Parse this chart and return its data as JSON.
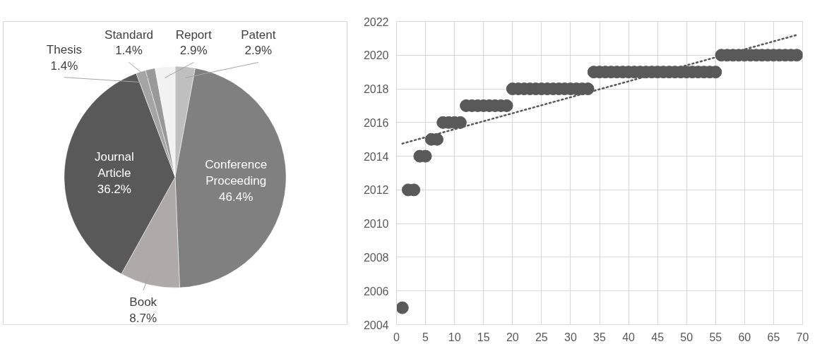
{
  "chart_data": [
    {
      "type": "pie",
      "categories": [
        "Patent",
        "Conference Proceeding",
        "Book",
        "Journal Article",
        "Thesis",
        "Standard",
        "Report"
      ],
      "values": [
        2.9,
        46.4,
        8.7,
        36.2,
        1.4,
        1.4,
        2.9
      ],
      "colors": [
        "#bfbfbf",
        "#808080",
        "#aeaaaa",
        "#595959",
        "#a5a5a5",
        "#999999",
        "#f2f2f2"
      ],
      "value_labels": [
        "2.9%",
        "46.4%",
        "8.7%",
        "36.2%",
        "1.4%",
        "1.4%",
        "2.9%"
      ]
    },
    {
      "type": "scatter",
      "xlim": [
        0,
        70
      ],
      "ylim": [
        2004,
        2022
      ],
      "xticks": [
        0,
        5,
        10,
        15,
        20,
        25,
        30,
        35,
        40,
        45,
        50,
        55,
        60,
        65,
        70
      ],
      "yticks": [
        2004,
        2006,
        2008,
        2010,
        2012,
        2014,
        2016,
        2018,
        2020,
        2022
      ],
      "grid": true,
      "series": [
        {
          "type": "scatter",
          "color": "#595959",
          "marker": "circle",
          "x": [
            1,
            2,
            3,
            4,
            5,
            6,
            7,
            8,
            9,
            10,
            11,
            12,
            13,
            14,
            15,
            16,
            17,
            18,
            19,
            20,
            21,
            22,
            23,
            24,
            25,
            26,
            27,
            28,
            29,
            30,
            31,
            32,
            33,
            34,
            35,
            36,
            37,
            38,
            39,
            40,
            41,
            42,
            43,
            44,
            45,
            46,
            47,
            48,
            49,
            50,
            51,
            52,
            53,
            54,
            55,
            56,
            57,
            58,
            59,
            60,
            61,
            62,
            63,
            64,
            65,
            66,
            67,
            68,
            69
          ],
          "values": [
            2005,
            2012,
            2012,
            2014,
            2014,
            2015,
            2015,
            2016,
            2016,
            2016,
            2016,
            2017,
            2017,
            2017,
            2017,
            2017,
            2017,
            2017,
            2017,
            2018,
            2018,
            2018,
            2018,
            2018,
            2018,
            2018,
            2018,
            2018,
            2018,
            2018,
            2018,
            2018,
            2018,
            2019,
            2019,
            2019,
            2019,
            2019,
            2019,
            2019,
            2019,
            2019,
            2019,
            2019,
            2019,
            2019,
            2019,
            2019,
            2019,
            2019,
            2019,
            2019,
            2019,
            2019,
            2019,
            2020,
            2020,
            2020,
            2020,
            2020,
            2020,
            2020,
            2020,
            2020,
            2020,
            2020,
            2020,
            2020,
            2020
          ]
        },
        {
          "type": "line",
          "color": "#595959",
          "line_style": "dotted",
          "x": [
            1,
            69
          ],
          "values": [
            2014.75,
            2021.2
          ]
        }
      ]
    }
  ]
}
